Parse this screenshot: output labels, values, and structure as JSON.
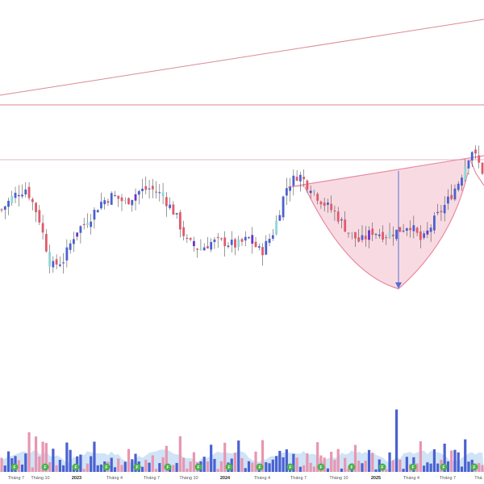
{
  "colors": {
    "up_body": "#4a61d1",
    "down_body": "#e05a6b",
    "up_shadow_teal": "#8fd6d8",
    "down_violet": "#6a33c7",
    "trend_line": "#d98a95",
    "cup_fill": "#f5ccd6",
    "cup_stroke": "#e88aa0",
    "measure_line": "#5a6ed1",
    "volume_up": "#4a61d1",
    "volume_down": "#e896b0",
    "volume_area": "#c4dcf5",
    "event_badge": "#4caf50"
  },
  "x_axis": {
    "ticks": [
      {
        "label": "Tháng 7",
        "year": false
      },
      {
        "label": "Tháng 10",
        "year": false
      },
      {
        "label": "2023",
        "year": true
      },
      {
        "label": "Tháng 4",
        "year": false
      },
      {
        "label": "Tháng 7",
        "year": false
      },
      {
        "label": "Tháng 10",
        "year": false
      },
      {
        "label": "2024",
        "year": true
      },
      {
        "label": "Tháng 4",
        "year": false
      },
      {
        "label": "Tháng 7",
        "year": false
      },
      {
        "label": "Tháng 10",
        "year": false
      },
      {
        "label": "2025",
        "year": true
      },
      {
        "label": "Tháng 4",
        "year": false
      },
      {
        "label": "Tháng 7",
        "year": false
      },
      {
        "label": "Thá",
        "year": false
      }
    ]
  },
  "event_badges": {
    "label": "F",
    "count": 16
  },
  "drawings": {
    "rising_trendline": "visible",
    "horizontal_levels": 2,
    "cup_pattern": "visible",
    "measure_arrow": "down"
  },
  "chart_data": {
    "type": "candlestick",
    "title": "",
    "xlabel": "",
    "ylabel": "",
    "x_range": [
      "2022-06",
      "2025-09"
    ],
    "grid": false,
    "legend": "none",
    "price_path": [
      {
        "x": "2022-06",
        "close": 56
      },
      {
        "x": "2022-07",
        "close": 60
      },
      {
        "x": "2022-08",
        "close": 62
      },
      {
        "x": "2022-09",
        "close": 54
      },
      {
        "x": "2022-10",
        "close": 40
      },
      {
        "x": "2022-11",
        "close": 42
      },
      {
        "x": "2022-12",
        "close": 50
      },
      {
        "x": "2023-01",
        "close": 53
      },
      {
        "x": "2023-02",
        "close": 58
      },
      {
        "x": "2023-03",
        "close": 60
      },
      {
        "x": "2023-04",
        "close": 58
      },
      {
        "x": "2023-05",
        "close": 61
      },
      {
        "x": "2023-06",
        "close": 62
      },
      {
        "x": "2023-07",
        "close": 60
      },
      {
        "x": "2023-08",
        "close": 55
      },
      {
        "x": "2023-09",
        "close": 47
      },
      {
        "x": "2023-10",
        "close": 45
      },
      {
        "x": "2023-11",
        "close": 47
      },
      {
        "x": "2023-12",
        "close": 47
      },
      {
        "x": "2024-01",
        "close": 46
      },
      {
        "x": "2024-02",
        "close": 48
      },
      {
        "x": "2024-03",
        "close": 44
      },
      {
        "x": "2024-04",
        "close": 50
      },
      {
        "x": "2024-05",
        "close": 62
      },
      {
        "x": "2024-06",
        "close": 66
      },
      {
        "x": "2024-07",
        "close": 62
      },
      {
        "x": "2024-08",
        "close": 58
      },
      {
        "x": "2024-09",
        "close": 55
      },
      {
        "x": "2024-10",
        "close": 50
      },
      {
        "x": "2024-11",
        "close": 47
      },
      {
        "x": "2024-12",
        "close": 50
      },
      {
        "x": "2025-01",
        "close": 49
      },
      {
        "x": "2025-02",
        "close": 50
      },
      {
        "x": "2025-03",
        "close": 52
      },
      {
        "x": "2025-04",
        "close": 47
      },
      {
        "x": "2025-05",
        "close": 53
      },
      {
        "x": "2025-06",
        "close": 58
      },
      {
        "x": "2025-07",
        "close": 64
      },
      {
        "x": "2025-08",
        "close": 73
      },
      {
        "x": "2025-09",
        "close": 66
      }
    ]
  }
}
